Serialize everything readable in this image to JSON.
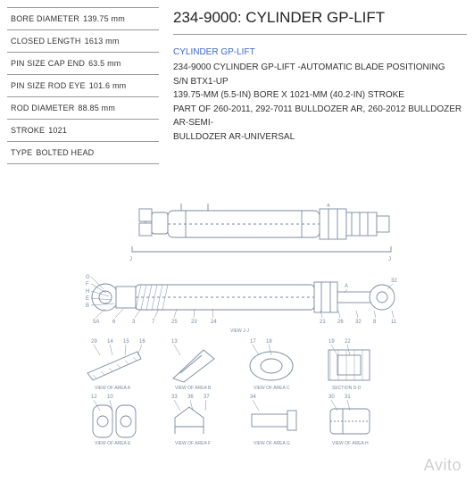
{
  "specs": [
    {
      "label": "BORE DIAMETER",
      "value": "139.75  mm"
    },
    {
      "label": "CLOSED LENGTH",
      "value": "1613  mm"
    },
    {
      "label": "PIN SIZE CAP END",
      "value": "63.5  mm"
    },
    {
      "label": "PIN SIZE ROD EYE",
      "value": "101.6  mm"
    },
    {
      "label": "ROD DIAMETER",
      "value": "88.85  mm"
    },
    {
      "label": "STROKE",
      "value": "1021"
    },
    {
      "label": "TYPE",
      "value": "BOLTED HEAD"
    }
  ],
  "title": "234-9000: CYLINDER GP-LIFT",
  "subtitle": "CYLINDER GP-LIFT",
  "description_lines": [
    "234-9000 CYLINDER GP-LIFT -AUTOMATIC BLADE POSITIONING",
    "S/N BTX1-UP",
    "139.75-MM (5.5-IN) BORE X 1021-MM (40.2-IN) STROKE",
    "PART OF 260-2011, 292-7011 BULLDOZER AR, 260-2012 BULLDOZER AR-SEMI-",
    "BULLDOZER AR-UNIVERSAL"
  ],
  "watermark": "Avito",
  "diagram": {
    "stroke": "#7a8aa0",
    "stroke_width": 0.9,
    "text_color": "#7a8aa0",
    "label_fontsize": 6,
    "caption_fontsize": 5,
    "main_view": {
      "caption": "VIEW J-J",
      "outer_left_label": "J",
      "outer_right_label": "J",
      "callouts_top": [
        "D",
        "C"
      ],
      "numbers_top": [
        "4"
      ],
      "left_cluster": [
        "G",
        "F",
        "H",
        "E",
        "B"
      ],
      "left_numbers": [
        "5A",
        "6",
        "3",
        "7",
        "25",
        "23",
        "24"
      ],
      "right_cluster": [
        "A"
      ],
      "right_numbers": [
        "21",
        "26",
        "32",
        "8",
        "11"
      ]
    },
    "detail_views": [
      {
        "caption": "VIEW OF AREA A",
        "numbers": [
          "29",
          "14",
          "15",
          "16"
        ]
      },
      {
        "caption": "VIEW OF AREA B",
        "numbers": [
          "13"
        ]
      },
      {
        "caption": "VIEW OF AREA C",
        "numbers": [
          "17",
          "18"
        ]
      },
      {
        "caption": "SECTION D-D",
        "numbers": [
          "19",
          "22"
        ]
      },
      {
        "caption": "VIEW OF AREA E",
        "numbers": [
          "12",
          "10"
        ]
      },
      {
        "caption": "VIEW OF AREA F",
        "numbers": [
          "33",
          "36",
          "37"
        ]
      },
      {
        "caption": "VIEW OF AREA G",
        "numbers": [
          "34"
        ]
      },
      {
        "caption": "VIEW OF AREA H",
        "numbers": [
          "30",
          "31"
        ]
      }
    ]
  }
}
